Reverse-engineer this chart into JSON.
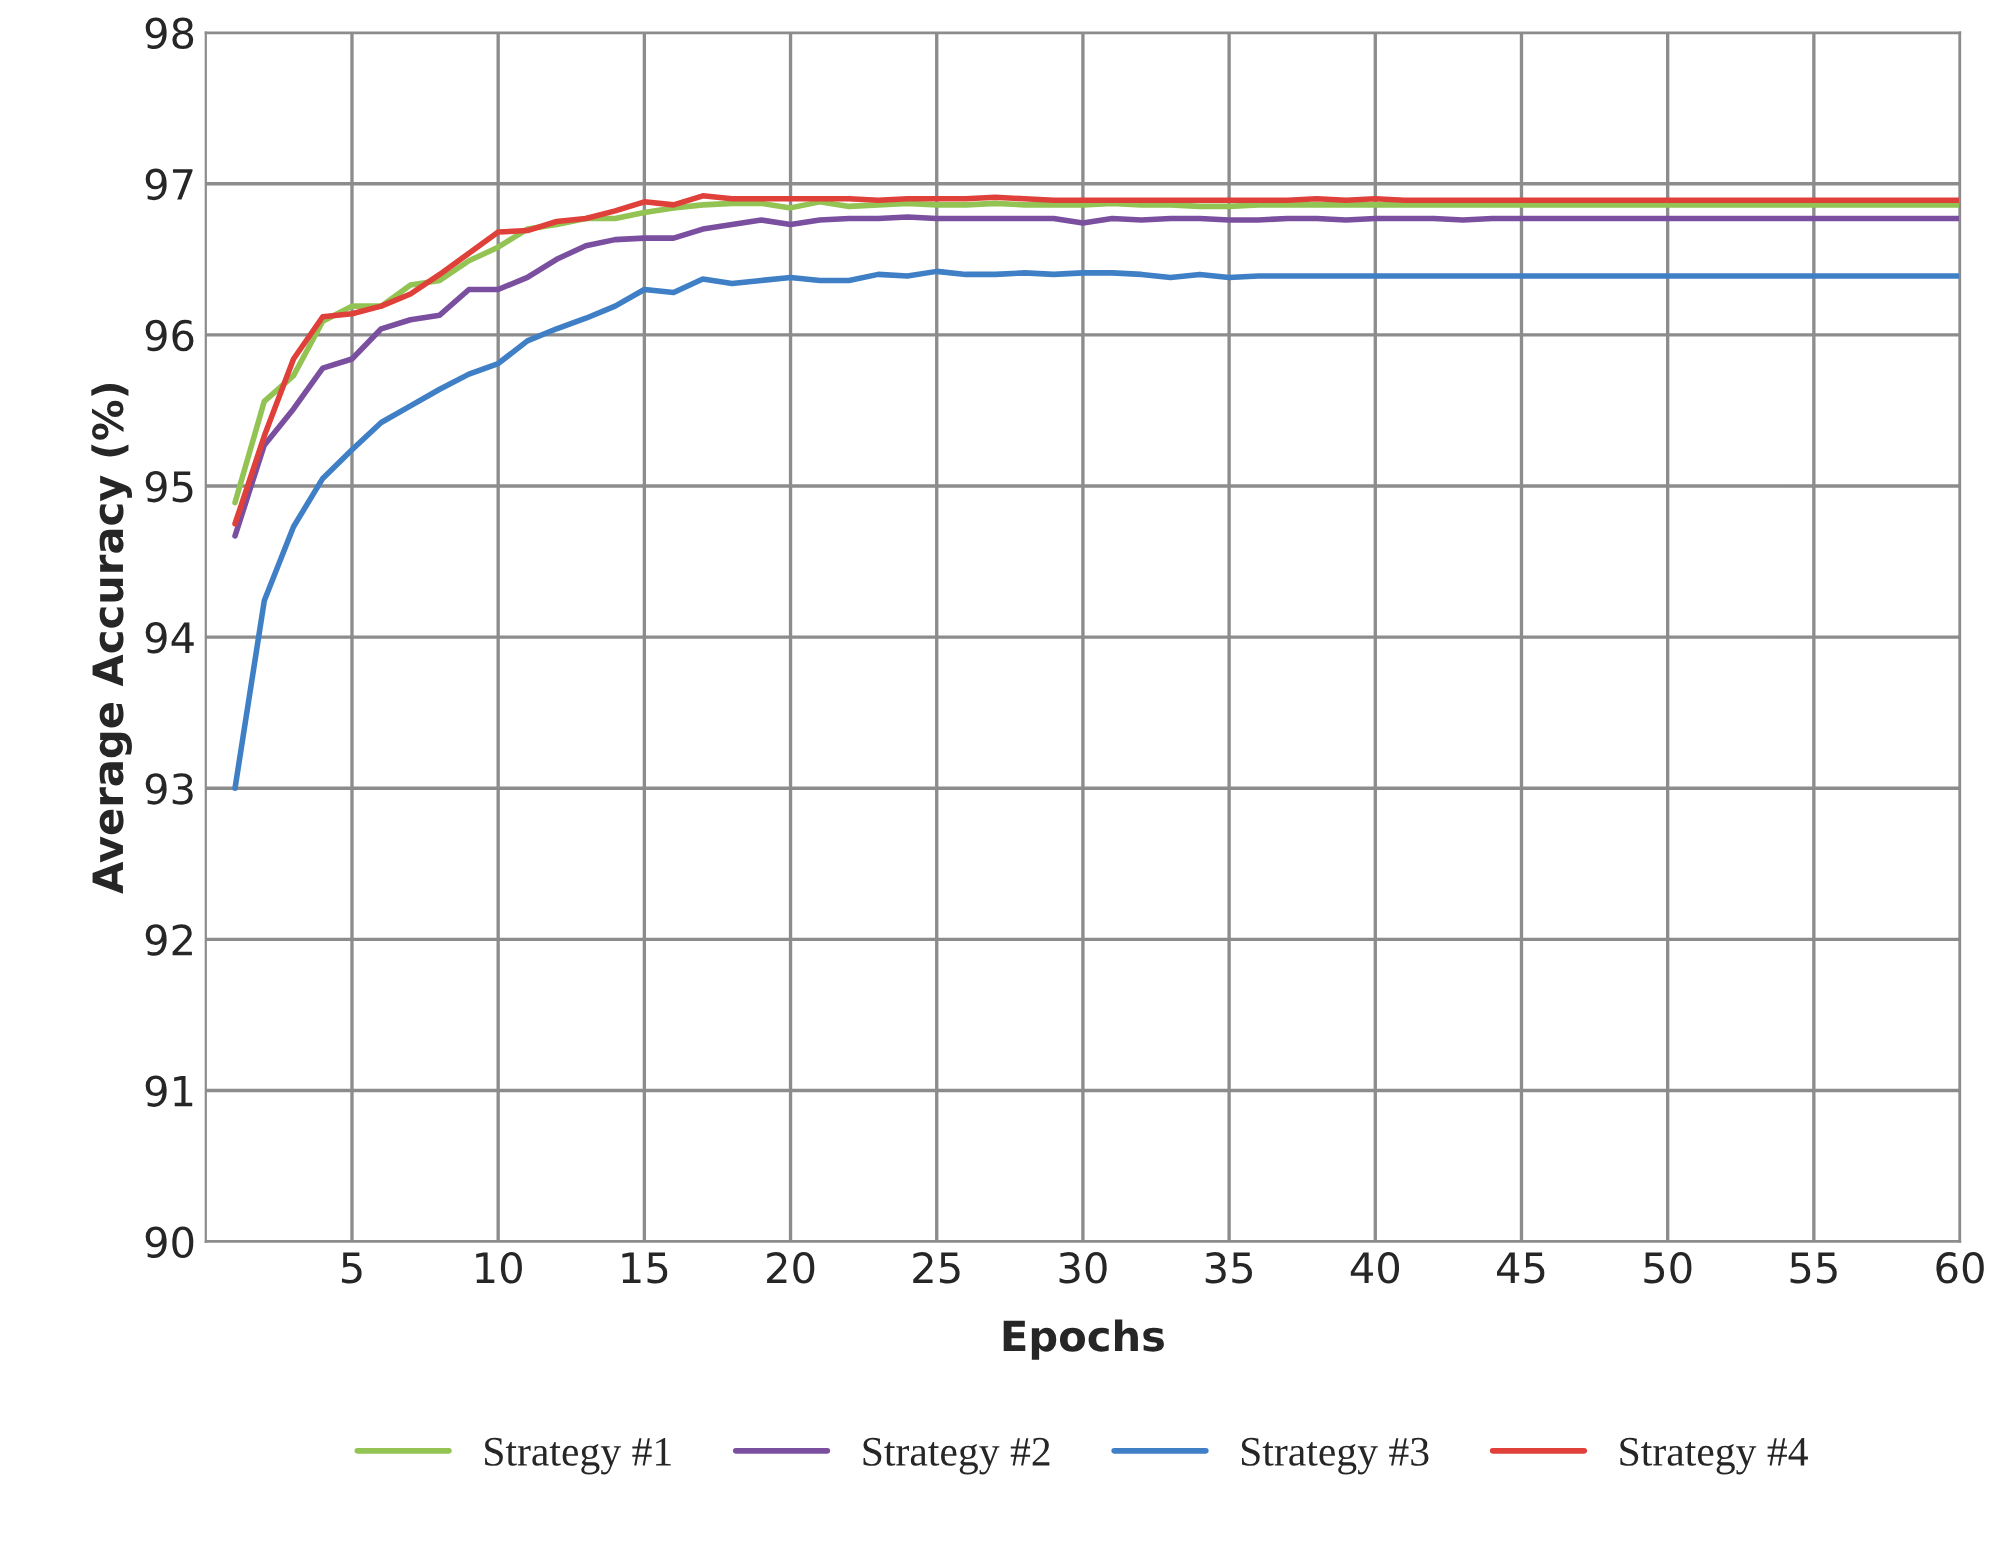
{
  "chart_data": {
    "type": "line",
    "xlabel": "Epochs",
    "ylabel": "Average Accuracy (%)",
    "x": [
      1,
      2,
      3,
      4,
      5,
      6,
      7,
      8,
      9,
      10,
      11,
      12,
      13,
      14,
      15,
      16,
      17,
      18,
      19,
      20,
      21,
      22,
      23,
      24,
      25,
      26,
      27,
      28,
      29,
      30,
      31,
      32,
      33,
      34,
      35,
      36,
      37,
      38,
      39,
      40,
      41,
      42,
      43,
      44,
      45,
      46,
      47,
      48,
      49,
      50,
      51,
      52,
      53,
      54,
      55,
      56,
      57,
      58,
      59,
      60
    ],
    "xlim": [
      0,
      60
    ],
    "xticks": [
      5,
      10,
      15,
      20,
      25,
      30,
      35,
      40,
      45,
      50,
      55,
      60
    ],
    "ylim": [
      90,
      98
    ],
    "yticks": [
      90,
      91,
      92,
      93,
      94,
      95,
      96,
      97,
      98
    ],
    "grid": true,
    "legend": "bottom",
    "marker": "none",
    "line_style": "solid",
    "series": [
      {
        "name": "Strategy #1",
        "color": "#92c353",
        "values": [
          94.89,
          95.56,
          95.73,
          96.09,
          96.19,
          96.19,
          96.33,
          96.36,
          96.49,
          96.58,
          96.7,
          96.73,
          96.77,
          96.77,
          96.81,
          96.84,
          96.86,
          96.87,
          96.87,
          96.84,
          96.88,
          96.85,
          96.86,
          96.87,
          96.86,
          96.86,
          96.87,
          96.86,
          96.86,
          96.86,
          96.87,
          96.86,
          96.86,
          96.85,
          96.85,
          96.86,
          96.86,
          96.86,
          96.86,
          96.86,
          96.86,
          96.86,
          96.86,
          96.86,
          96.86,
          96.86,
          96.86,
          96.86,
          96.86,
          96.86,
          96.86,
          96.86,
          96.86,
          96.86,
          96.86,
          96.86,
          96.86,
          96.86,
          96.86,
          96.86
        ]
      },
      {
        "name": "Strategy #2",
        "color": "#7b4fa0",
        "values": [
          94.67,
          95.27,
          95.51,
          95.78,
          95.84,
          96.04,
          96.1,
          96.13,
          96.3,
          96.3,
          96.38,
          96.5,
          96.59,
          96.63,
          96.64,
          96.64,
          96.7,
          96.73,
          96.76,
          96.73,
          96.76,
          96.77,
          96.77,
          96.78,
          96.77,
          96.77,
          96.77,
          96.77,
          96.77,
          96.74,
          96.77,
          96.76,
          96.77,
          96.77,
          96.76,
          96.76,
          96.77,
          96.77,
          96.76,
          96.77,
          96.77,
          96.77,
          96.76,
          96.77,
          96.77,
          96.77,
          96.77,
          96.77,
          96.77,
          96.77,
          96.77,
          96.77,
          96.77,
          96.77,
          96.77,
          96.77,
          96.77,
          96.77,
          96.77,
          96.77
        ]
      },
      {
        "name": "Strategy #3",
        "color": "#3f7fc6",
        "values": [
          93.0,
          94.24,
          94.73,
          95.05,
          95.24,
          95.42,
          95.53,
          95.64,
          95.74,
          95.81,
          95.96,
          96.04,
          96.11,
          96.19,
          96.3,
          96.28,
          96.37,
          96.34,
          96.36,
          96.38,
          96.36,
          96.36,
          96.4,
          96.39,
          96.42,
          96.4,
          96.4,
          96.41,
          96.4,
          96.41,
          96.41,
          96.4,
          96.38,
          96.4,
          96.38,
          96.39,
          96.39,
          96.39,
          96.39,
          96.39,
          96.39,
          96.39,
          96.39,
          96.39,
          96.39,
          96.39,
          96.39,
          96.39,
          96.39,
          96.39,
          96.39,
          96.39,
          96.39,
          96.39,
          96.39,
          96.39,
          96.39,
          96.39,
          96.39,
          96.39
        ]
      },
      {
        "name": "Strategy #4",
        "color": "#e0403a",
        "values": [
          94.75,
          95.33,
          95.84,
          96.12,
          96.14,
          96.19,
          96.27,
          96.4,
          96.54,
          96.68,
          96.69,
          96.75,
          96.77,
          96.82,
          96.88,
          96.86,
          96.92,
          96.9,
          96.9,
          96.9,
          96.9,
          96.9,
          96.89,
          96.9,
          96.9,
          96.9,
          96.91,
          96.9,
          96.89,
          96.89,
          96.89,
          96.89,
          96.89,
          96.89,
          96.89,
          96.89,
          96.89,
          96.9,
          96.89,
          96.9,
          96.89,
          96.89,
          96.89,
          96.89,
          96.89,
          96.89,
          96.89,
          96.89,
          96.89,
          96.89,
          96.89,
          96.89,
          96.89,
          96.89,
          96.89,
          96.89,
          96.89,
          96.89,
          96.89,
          96.89
        ]
      }
    ]
  }
}
